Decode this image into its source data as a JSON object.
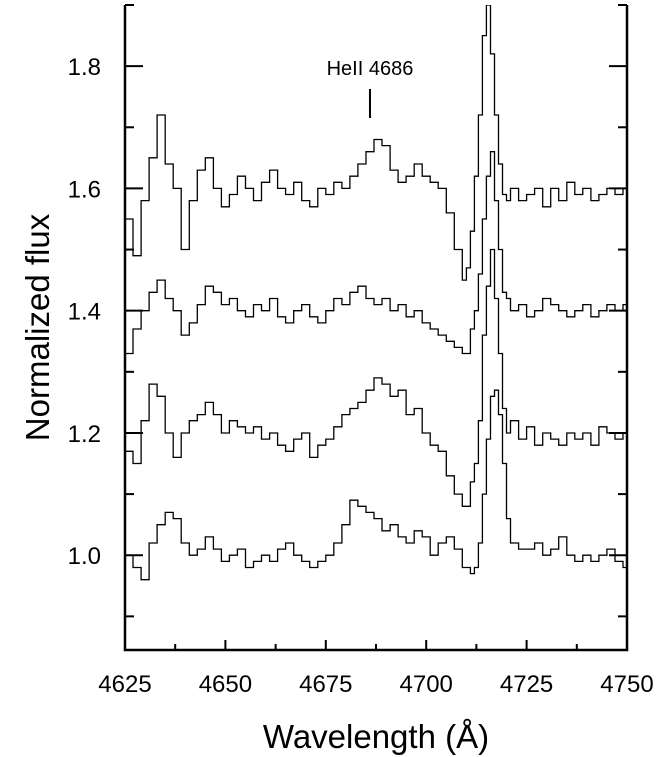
{
  "chart_data": {
    "type": "line",
    "line_style": "step",
    "xlabel": "Wavelength (Å)",
    "ylabel": "Normalized flux",
    "xlim": [
      4625,
      4750
    ],
    "ylim": [
      0.845,
      1.9
    ],
    "x_ticks": [
      4625,
      4650,
      4675,
      4700,
      4725,
      4750
    ],
    "x_tick_labels": [
      "4625",
      "4650",
      "4675",
      "4700",
      "4725",
      "4750"
    ],
    "y_ticks": [
      1.0,
      1.2,
      1.4,
      1.6,
      1.8
    ],
    "y_tick_labels": [
      "1.0",
      "1.2",
      "1.4",
      "1.6",
      "1.8"
    ],
    "grid": false,
    "legend": "none",
    "annotations": [
      {
        "text": "HeII 4686",
        "x": 4686,
        "marker": "vertical-tick"
      }
    ],
    "series": [
      {
        "x": [
          4625,
          4627,
          4629,
          4631,
          4633,
          4635,
          4637,
          4639,
          4641,
          4643,
          4645,
          4647,
          4649,
          4651,
          4653,
          4655,
          4657,
          4659,
          4661,
          4663,
          4665,
          4667,
          4669,
          4671,
          4673,
          4675,
          4677,
          4679,
          4681,
          4683,
          4685,
          4687,
          4689,
          4691,
          4693,
          4695,
          4697,
          4699,
          4701,
          4703,
          4705,
          4707,
          4709,
          4711,
          4712,
          4713,
          4714,
          4715,
          4716,
          4717,
          4718,
          4719,
          4720,
          4721,
          4723,
          4725,
          4727,
          4729,
          4731,
          4733,
          4735,
          4737,
          4739,
          4741,
          4743,
          4745,
          4747,
          4749
        ],
        "y": [
          1.0,
          0.98,
          0.96,
          1.02,
          1.05,
          1.07,
          1.06,
          1.02,
          1.0,
          1.01,
          1.03,
          1.01,
          0.99,
          1.0,
          1.01,
          0.98,
          0.99,
          1.0,
          0.99,
          1.01,
          1.02,
          1.0,
          0.99,
          0.98,
          0.99,
          1.0,
          1.02,
          1.05,
          1.09,
          1.08,
          1.07,
          1.06,
          1.04,
          1.05,
          1.03,
          1.02,
          1.04,
          1.03,
          1.0,
          1.02,
          1.03,
          1.01,
          0.98,
          0.97,
          0.98,
          1.02,
          1.1,
          1.19,
          1.26,
          1.27,
          1.23,
          1.15,
          1.06,
          1.02,
          1.01,
          1.01,
          1.02,
          1.0,
          1.01,
          1.03,
          1.0,
          0.99,
          1.0,
          0.99,
          1.0,
          1.01,
          0.99,
          0.98
        ]
      },
      {
        "x": [
          4625,
          4627,
          4629,
          4631,
          4633,
          4635,
          4637,
          4639,
          4641,
          4643,
          4645,
          4647,
          4649,
          4651,
          4653,
          4655,
          4657,
          4659,
          4661,
          4663,
          4665,
          4667,
          4669,
          4671,
          4673,
          4675,
          4677,
          4679,
          4681,
          4683,
          4685,
          4687,
          4689,
          4691,
          4693,
          4695,
          4697,
          4699,
          4701,
          4703,
          4705,
          4707,
          4709,
          4711,
          4712,
          4713,
          4714,
          4715,
          4716,
          4717,
          4718,
          4719,
          4720,
          4721,
          4723,
          4725,
          4727,
          4729,
          4731,
          4733,
          4735,
          4737,
          4739,
          4741,
          4743,
          4745,
          4747,
          4749
        ],
        "y": [
          1.17,
          1.15,
          1.22,
          1.28,
          1.26,
          1.2,
          1.16,
          1.2,
          1.22,
          1.23,
          1.25,
          1.23,
          1.2,
          1.22,
          1.21,
          1.2,
          1.21,
          1.19,
          1.2,
          1.18,
          1.17,
          1.19,
          1.2,
          1.16,
          1.18,
          1.19,
          1.21,
          1.23,
          1.24,
          1.25,
          1.27,
          1.29,
          1.28,
          1.26,
          1.27,
          1.23,
          1.24,
          1.2,
          1.18,
          1.17,
          1.13,
          1.1,
          1.08,
          1.12,
          1.15,
          1.22,
          1.36,
          1.44,
          1.5,
          1.42,
          1.33,
          1.24,
          1.2,
          1.22,
          1.19,
          1.21,
          1.18,
          1.2,
          1.19,
          1.18,
          1.2,
          1.19,
          1.2,
          1.18,
          1.21,
          1.2,
          1.19,
          1.2
        ]
      },
      {
        "x": [
          4625,
          4627,
          4629,
          4631,
          4633,
          4635,
          4637,
          4639,
          4641,
          4643,
          4645,
          4647,
          4649,
          4651,
          4653,
          4655,
          4657,
          4659,
          4661,
          4663,
          4665,
          4667,
          4669,
          4671,
          4673,
          4675,
          4677,
          4679,
          4681,
          4683,
          4685,
          4687,
          4689,
          4691,
          4693,
          4695,
          4697,
          4699,
          4701,
          4703,
          4705,
          4707,
          4709,
          4711,
          4712,
          4713,
          4714,
          4715,
          4716,
          4717,
          4718,
          4719,
          4720,
          4721,
          4723,
          4725,
          4727,
          4729,
          4731,
          4733,
          4735,
          4737,
          4739,
          4741,
          4743,
          4745,
          4747,
          4749
        ],
        "y": [
          1.33,
          1.37,
          1.4,
          1.43,
          1.45,
          1.42,
          1.4,
          1.36,
          1.38,
          1.41,
          1.44,
          1.43,
          1.41,
          1.42,
          1.4,
          1.39,
          1.41,
          1.4,
          1.42,
          1.39,
          1.38,
          1.4,
          1.41,
          1.39,
          1.38,
          1.4,
          1.42,
          1.41,
          1.43,
          1.44,
          1.42,
          1.41,
          1.42,
          1.4,
          1.41,
          1.39,
          1.4,
          1.38,
          1.37,
          1.36,
          1.35,
          1.34,
          1.33,
          1.37,
          1.4,
          1.46,
          1.55,
          1.62,
          1.66,
          1.58,
          1.5,
          1.43,
          1.42,
          1.4,
          1.41,
          1.39,
          1.4,
          1.42,
          1.41,
          1.4,
          1.39,
          1.4,
          1.41,
          1.39,
          1.4,
          1.41,
          1.4,
          1.41
        ]
      },
      {
        "x": [
          4625,
          4627,
          4629,
          4631,
          4633,
          4635,
          4637,
          4639,
          4641,
          4643,
          4645,
          4647,
          4649,
          4651,
          4653,
          4655,
          4657,
          4659,
          4661,
          4663,
          4665,
          4667,
          4669,
          4671,
          4673,
          4675,
          4677,
          4679,
          4681,
          4683,
          4685,
          4687,
          4689,
          4691,
          4693,
          4695,
          4697,
          4699,
          4701,
          4703,
          4705,
          4707,
          4709,
          4710,
          4711,
          4712,
          4713,
          4714,
          4715,
          4716,
          4717,
          4718,
          4719,
          4720,
          4721,
          4723,
          4725,
          4727,
          4729,
          4731,
          4733,
          4735,
          4737,
          4739,
          4741,
          4743,
          4745,
          4747,
          4749
        ],
        "y": [
          1.55,
          1.49,
          1.58,
          1.65,
          1.72,
          1.64,
          1.6,
          1.5,
          1.58,
          1.63,
          1.65,
          1.6,
          1.57,
          1.59,
          1.62,
          1.6,
          1.58,
          1.61,
          1.63,
          1.6,
          1.59,
          1.61,
          1.58,
          1.57,
          1.6,
          1.59,
          1.61,
          1.6,
          1.62,
          1.64,
          1.66,
          1.68,
          1.67,
          1.63,
          1.61,
          1.62,
          1.64,
          1.62,
          1.61,
          1.6,
          1.56,
          1.5,
          1.45,
          1.47,
          1.53,
          1.62,
          1.72,
          1.85,
          1.9,
          1.82,
          1.72,
          1.64,
          1.59,
          1.58,
          1.6,
          1.58,
          1.59,
          1.6,
          1.57,
          1.6,
          1.58,
          1.61,
          1.59,
          1.6,
          1.58,
          1.59,
          1.6,
          1.59,
          1.6
        ]
      }
    ]
  }
}
